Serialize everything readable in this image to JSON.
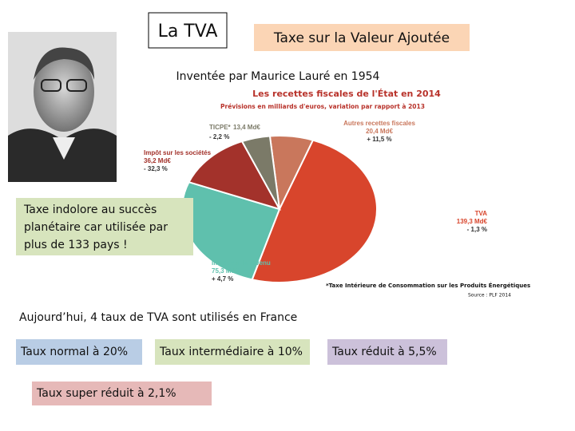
{
  "title": "La TVA",
  "subtitle": "Taxe sur la Valeur Ajoutée",
  "inventor": "Inventée par Maurice Lauré en 1954",
  "callout": [
    "Taxe indolore au succès",
    "planétaire car utilisée par",
    "plus de 133 pays !"
  ],
  "chart": {
    "type": "pie",
    "title": "Les recettes fiscales de l'État en 2014",
    "subtitle": "Prévisions en milliards d'euros, variation par rapport à 2013",
    "slices": [
      {
        "name": "Autres recettes fiscales",
        "value": 20.4,
        "value_label": "20,4 Md€",
        "change": "+ 11,5 %",
        "color": "#c9775c"
      },
      {
        "name": "TVA",
        "value": 139.3,
        "value_label": "139,3 Md€",
        "change": "- 1,3 %",
        "color": "#d8452c"
      },
      {
        "name": "Impôt sur le revenu",
        "value": 75.3,
        "value_label": "75,3 Md€",
        "change": "+ 4,7 %",
        "color": "#5fc0ad"
      },
      {
        "name": "Impôt sur les sociétés",
        "value": 36.2,
        "value_label": "36,2 Md€",
        "change": "- 32,3 %",
        "color": "#a3322b"
      },
      {
        "name": "TICPE*",
        "value": 13.4,
        "value_label": "13,4 Md€",
        "change": "- 2,2 %",
        "color": "#7b7a68"
      }
    ],
    "note": "*Taxe Intérieure de Consommation sur les Produits Énergétiques",
    "source": "Source : PLF 2014"
  },
  "rates_intro": "Aujourd’hui, 4 taux de TVA sont utilisés en France",
  "rates": [
    "Taux normal à 20%",
    "Taux intermédiaire à 10%",
    "Taux réduit à 5,5%",
    "Taux super réduit à 2,1%"
  ]
}
